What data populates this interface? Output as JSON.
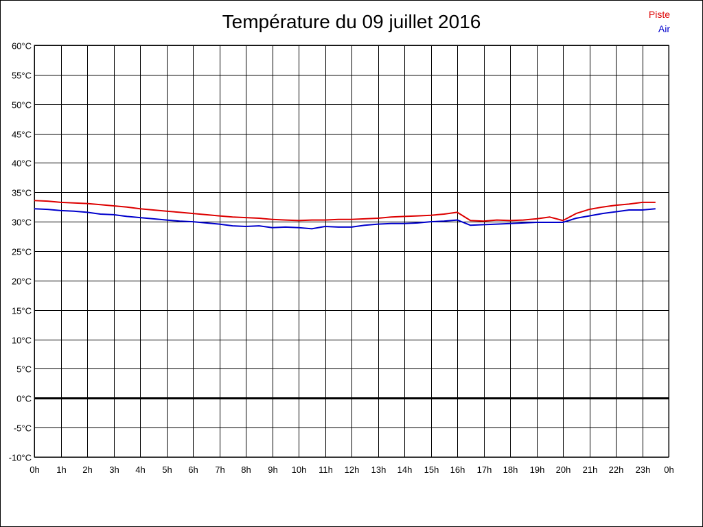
{
  "chart_data": {
    "type": "line",
    "title": "Température du 09 juillet 2016",
    "x_tick_labels": [
      "0h",
      "1h",
      "2h",
      "3h",
      "4h",
      "5h",
      "6h",
      "7h",
      "8h",
      "9h",
      "10h",
      "11h",
      "12h",
      "13h",
      "14h",
      "15h",
      "16h",
      "17h",
      "18h",
      "19h",
      "20h",
      "21h",
      "22h",
      "23h",
      "0h"
    ],
    "y_tick_labels": [
      "60°C",
      "55°C",
      "50°C",
      "45°C",
      "40°C",
      "35°C",
      "30°C",
      "25°C",
      "20°C",
      "15°C",
      "10°C",
      "5°C",
      "0°C",
      "-5°C",
      "-10°C"
    ],
    "xlim": [
      0,
      24
    ],
    "ylim": [
      -10,
      60
    ],
    "grid": true,
    "legend_position": "top-right",
    "series": [
      {
        "name": "Piste",
        "color": "#dd0000",
        "x": [
          0,
          0.5,
          1,
          1.5,
          2,
          2.5,
          3,
          3.5,
          4,
          4.5,
          5,
          5.5,
          6,
          6.5,
          7,
          7.5,
          8,
          8.5,
          9,
          9.5,
          10,
          10.5,
          11,
          11.5,
          12,
          12.5,
          13,
          13.5,
          14,
          14.5,
          15,
          15.5,
          16,
          16.5,
          17,
          17.5,
          18,
          18.5,
          19,
          19.5,
          20,
          20.5,
          21,
          21.5,
          22,
          22.5,
          23,
          23.5
        ],
        "values": [
          33.6,
          33.5,
          33.3,
          33.2,
          33.1,
          32.9,
          32.7,
          32.5,
          32.2,
          32.0,
          31.8,
          31.6,
          31.4,
          31.2,
          31.0,
          30.8,
          30.7,
          30.6,
          30.4,
          30.3,
          30.2,
          30.3,
          30.3,
          30.4,
          30.4,
          30.5,
          30.6,
          30.8,
          30.9,
          31.0,
          31.1,
          31.3,
          31.6,
          30.2,
          30.1,
          30.3,
          30.2,
          30.3,
          30.5,
          30.8,
          30.2,
          31.4,
          32.1,
          32.5,
          32.8,
          33.0,
          33.3,
          33.3
        ]
      },
      {
        "name": "Air",
        "color": "#0000cc",
        "x": [
          0,
          0.5,
          1,
          1.5,
          2,
          2.5,
          3,
          3.5,
          4,
          4.5,
          5,
          5.5,
          6,
          6.5,
          7,
          7.5,
          8,
          8.5,
          9,
          9.5,
          10,
          10.5,
          11,
          11.5,
          12,
          12.5,
          13,
          13.5,
          14,
          14.5,
          15,
          15.5,
          16,
          16.5,
          17,
          17.5,
          18,
          18.5,
          19,
          19.5,
          20,
          20.5,
          21,
          21.5,
          22,
          22.5,
          23,
          23.5
        ],
        "values": [
          32.2,
          32.1,
          31.9,
          31.8,
          31.6,
          31.3,
          31.2,
          30.9,
          30.7,
          30.5,
          30.3,
          30.1,
          30.0,
          29.8,
          29.6,
          29.3,
          29.2,
          29.3,
          29.0,
          29.1,
          29.0,
          28.8,
          29.2,
          29.1,
          29.1,
          29.4,
          29.6,
          29.7,
          29.7,
          29.8,
          30.0,
          30.1,
          30.3,
          29.4,
          29.5,
          29.6,
          29.7,
          29.8,
          29.9,
          29.9,
          29.9,
          30.6,
          31.0,
          31.4,
          31.7,
          32.0,
          32.0,
          32.2
        ]
      }
    ]
  }
}
